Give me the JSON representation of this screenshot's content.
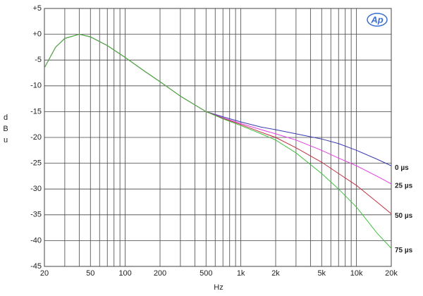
{
  "chart_data": {
    "type": "line",
    "xlabel": "Hz",
    "ylabel": "dBu",
    "logo": "Ap",
    "xscale": "log",
    "xlim": [
      20,
      20000
    ],
    "ylim": [
      -45,
      5
    ],
    "grid": true,
    "xticks": [
      20,
      50,
      100,
      200,
      500,
      {
        "value": 1000,
        "label": "1k"
      },
      {
        "value": 2000,
        "label": "2k"
      },
      {
        "value": 5000,
        "label": "5k"
      },
      {
        "value": 10000,
        "label": "10k"
      },
      {
        "value": 20000,
        "label": "20k"
      }
    ],
    "xgrid_minor": [
      30,
      40,
      60,
      70,
      80,
      90,
      300,
      400,
      600,
      700,
      800,
      900,
      3000,
      4000,
      6000,
      7000,
      8000,
      9000
    ],
    "yticks": [
      {
        "value": 5,
        "label": "+5"
      },
      {
        "value": 0,
        "label": "+0"
      },
      -5,
      -10,
      -15,
      -20,
      -25,
      -30,
      -35,
      -40,
      -45
    ],
    "x": [
      20,
      25,
      30,
      40,
      50,
      70,
      100,
      150,
      200,
      300,
      500,
      700,
      1000,
      1500,
      2000,
      3000,
      5000,
      7000,
      10000,
      15000,
      20000
    ],
    "series": [
      {
        "name": "0 µs",
        "color": "#3a3ab0",
        "values": [
          -6.5,
          -2.5,
          -0.8,
          0,
          -0.5,
          -2.2,
          -4.5,
          -7.3,
          -9.2,
          -12,
          -15,
          -16,
          -17,
          -18,
          -18.5,
          -19.3,
          -20.3,
          -21.2,
          -22.5,
          -24.2,
          -25.5
        ]
      },
      {
        "name": "25 µs",
        "color": "#e040e0",
        "values": [
          -6.5,
          -2.5,
          -0.8,
          0,
          -0.5,
          -2.2,
          -4.5,
          -7.3,
          -9.2,
          -12,
          -15,
          -16.2,
          -17.3,
          -18.5,
          -19.3,
          -20.5,
          -22.5,
          -24,
          -25.5,
          -27.5,
          -29
        ]
      },
      {
        "name": "50 µs",
        "color": "#c03040",
        "values": [
          -6.5,
          -2.5,
          -0.8,
          0,
          -0.5,
          -2.2,
          -4.5,
          -7.3,
          -9.2,
          -12,
          -15,
          -16.3,
          -17.5,
          -19,
          -20,
          -22,
          -24.8,
          -27,
          -29.3,
          -32.5,
          -34.8
        ]
      },
      {
        "name": "75 µs",
        "color": "#40c040",
        "values": [
          -6.5,
          -2.5,
          -0.8,
          0,
          -0.5,
          -2.2,
          -4.5,
          -7.3,
          -9.2,
          -12,
          -15,
          -16.4,
          -17.7,
          -19.3,
          -20.5,
          -23,
          -27,
          -30,
          -33.5,
          -38.5,
          -41.5
        ]
      }
    ]
  }
}
